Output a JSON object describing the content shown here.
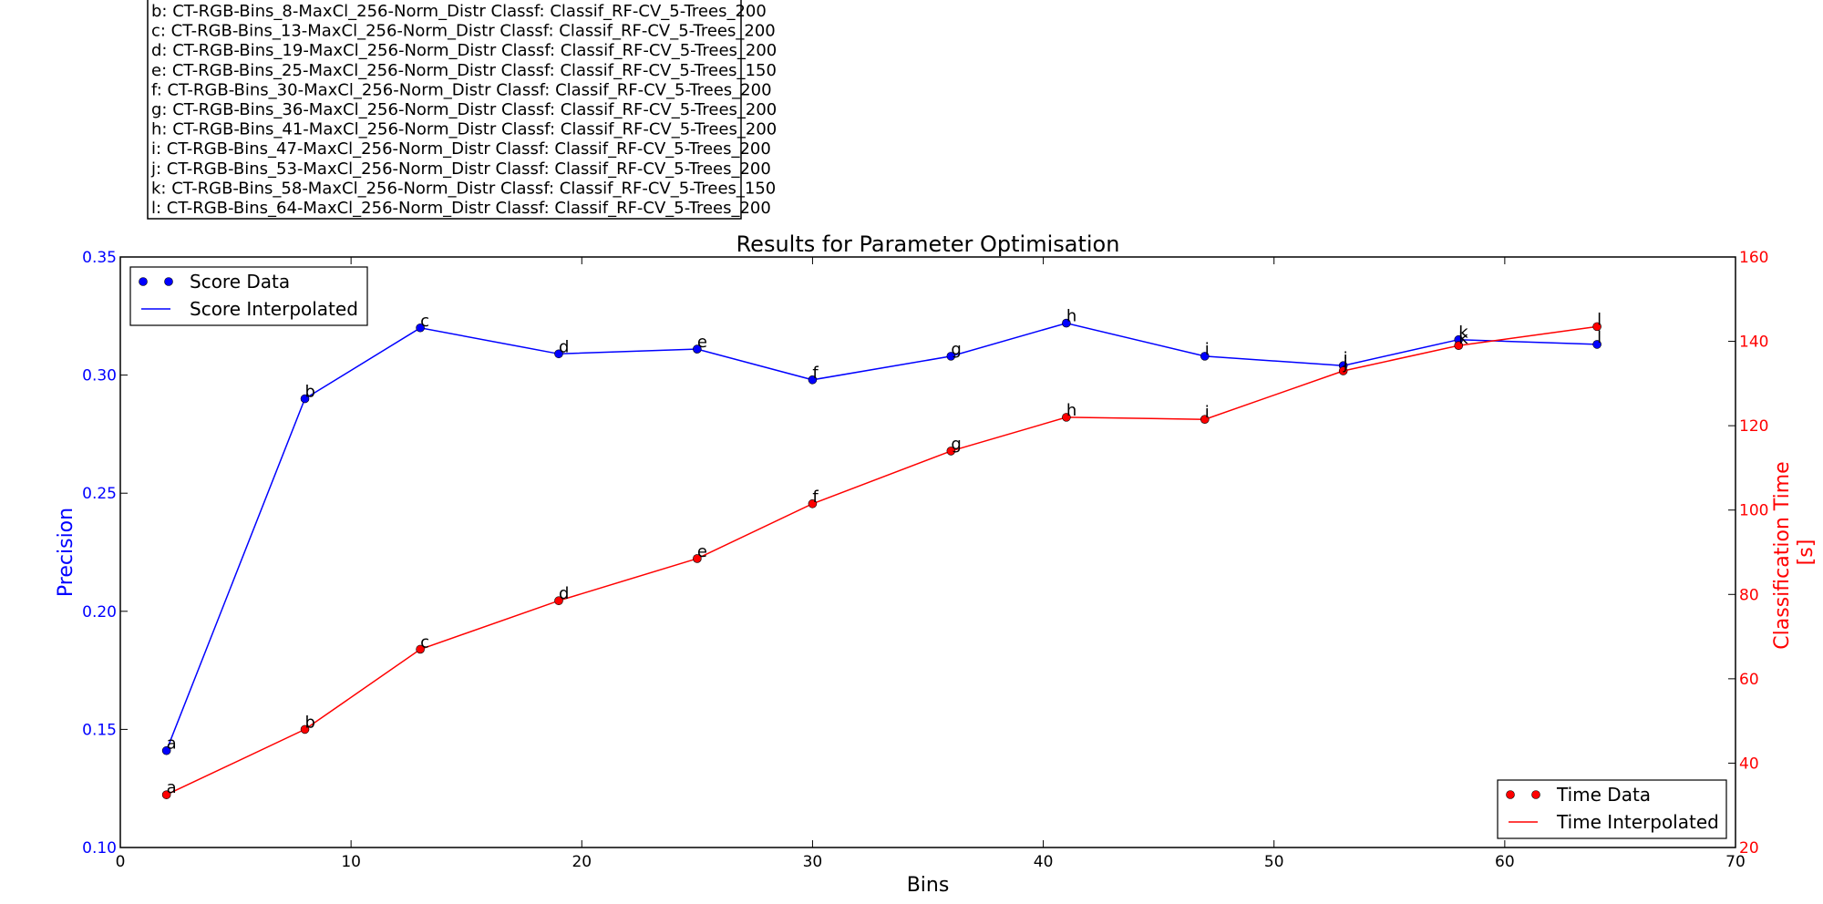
{
  "chart_data": {
    "type": "line",
    "title": "Results for Parameter Optimisation",
    "xlabel": "Bins",
    "ylabel_left": "Precision",
    "ylabel_right_lines": [
      "Classification Time",
      "[s]"
    ],
    "xlim": [
      0,
      70
    ],
    "ylim_left": [
      0.1,
      0.35
    ],
    "ylim_right": [
      20,
      160
    ],
    "x_ticks": [
      "0",
      "10",
      "20",
      "30",
      "40",
      "50",
      "60",
      "70"
    ],
    "y_left_ticks": [
      "0.10",
      "0.15",
      "0.20",
      "0.25",
      "0.30",
      "0.35"
    ],
    "y_right_ticks": [
      "20",
      "40",
      "60",
      "80",
      "100",
      "120",
      "140",
      "160"
    ],
    "point_labels": [
      "a",
      "b",
      "c",
      "d",
      "e",
      "f",
      "g",
      "h",
      "i",
      "j",
      "k",
      "l"
    ],
    "x": [
      2,
      8,
      13,
      19,
      25,
      30,
      36,
      41,
      47,
      53,
      58,
      64
    ],
    "series": [
      {
        "name": "Score Data",
        "axis": "left",
        "color": "#0000ff",
        "values": [
          0.141,
          0.29,
          0.32,
          0.309,
          0.311,
          0.298,
          0.308,
          0.322,
          0.308,
          0.304,
          0.315,
          0.313
        ]
      },
      {
        "name": "Time Data",
        "axis": "right",
        "color": "#ff0000",
        "values": [
          32.5,
          48.0,
          67.0,
          78.5,
          88.5,
          101.5,
          114.0,
          122.0,
          121.5,
          133.0,
          139.0,
          143.5
        ]
      }
    ],
    "legend_upper_left": [
      "Score Data",
      "Score Interpolated"
    ],
    "legend_lower_right": [
      "Time Data",
      "Time Interpolated"
    ],
    "configurations": [
      "b: CT-RGB-Bins_8-MaxCl_256-Norm_Distr Classf: Classif_RF-CV_5-Trees_200",
      "c: CT-RGB-Bins_13-MaxCl_256-Norm_Distr Classf: Classif_RF-CV_5-Trees_200",
      "d: CT-RGB-Bins_19-MaxCl_256-Norm_Distr Classf: Classif_RF-CV_5-Trees_200",
      "e: CT-RGB-Bins_25-MaxCl_256-Norm_Distr Classf: Classif_RF-CV_5-Trees_150",
      "f: CT-RGB-Bins_30-MaxCl_256-Norm_Distr Classf: Classif_RF-CV_5-Trees_200",
      "g: CT-RGB-Bins_36-MaxCl_256-Norm_Distr Classf: Classif_RF-CV_5-Trees_200",
      "h: CT-RGB-Bins_41-MaxCl_256-Norm_Distr Classf: Classif_RF-CV_5-Trees_200",
      "i: CT-RGB-Bins_47-MaxCl_256-Norm_Distr Classf: Classif_RF-CV_5-Trees_200",
      "j: CT-RGB-Bins_53-MaxCl_256-Norm_Distr Classf: Classif_RF-CV_5-Trees_200",
      "k: CT-RGB-Bins_58-MaxCl_256-Norm_Distr Classf: Classif_RF-CV_5-Trees_150",
      "l: CT-RGB-Bins_64-MaxCl_256-Norm_Distr Classf: Classif_RF-CV_5-Trees_200"
    ]
  }
}
